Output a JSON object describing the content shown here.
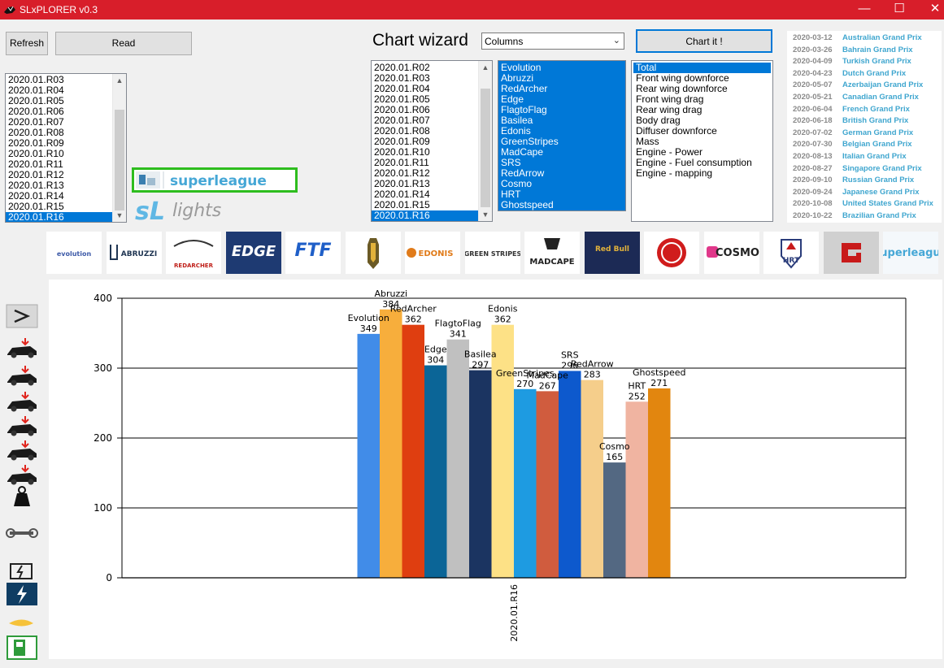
{
  "window": {
    "title": "SLxPLORER v0.3",
    "minimize": "—",
    "maximize": "☐",
    "close": "✕"
  },
  "toolbar": {
    "refresh_label": "Refresh",
    "read_label": "Read"
  },
  "race_list": {
    "items": [
      "2020.01.R03",
      "2020.01.R04",
      "2020.01.R05",
      "2020.01.R06",
      "2020.01.R07",
      "2020.01.R08",
      "2020.01.R09",
      "2020.01.R10",
      "2020.01.R11",
      "2020.01.R12",
      "2020.01.R13",
      "2020.01.R14",
      "2020.01.R15",
      "2020.01.R16"
    ],
    "selected": "2020.01.R16"
  },
  "wizard": {
    "title": "Chart wizard",
    "chart_type_value": "Columns",
    "chart_button_label": "Chart it !",
    "sessions": [
      "2020.01.R02",
      "2020.01.R03",
      "2020.01.R04",
      "2020.01.R05",
      "2020.01.R06",
      "2020.01.R07",
      "2020.01.R08",
      "2020.01.R09",
      "2020.01.R10",
      "2020.01.R11",
      "2020.01.R12",
      "2020.01.R13",
      "2020.01.R14",
      "2020.01.R15",
      "2020.01.R16"
    ],
    "session_selected": "2020.01.R16",
    "teams": [
      "Evolution",
      "Abruzzi",
      "RedArcher",
      "Edge",
      "FlagtoFlag",
      "Basilea",
      "Edonis",
      "GreenStripes",
      "MadCape",
      "SRS",
      "RedArrow",
      "Cosmo",
      "HRT",
      "Ghostspeed"
    ],
    "metrics": [
      "Total",
      "Front wing downforce",
      "Rear wing downforce",
      "Front wing drag",
      "Rear wing drag",
      "Body drag",
      "Diffuser downforce",
      "Mass",
      "Engine - Power",
      "Engine - Fuel consumption",
      "Engine - mapping"
    ],
    "metric_selected": "Total"
  },
  "calendar": [
    {
      "date": "2020-03-12",
      "name": "Australian Grand Prix"
    },
    {
      "date": "2020-03-26",
      "name": "Bahrain Grand Prix"
    },
    {
      "date": "2020-04-09",
      "name": "Turkish Grand Prix"
    },
    {
      "date": "2020-04-23",
      "name": "Dutch Grand Prix"
    },
    {
      "date": "2020-05-07",
      "name": "Azerbaijan Grand Prix"
    },
    {
      "date": "2020-05-21",
      "name": "Canadian Grand Prix"
    },
    {
      "date": "2020-06-04",
      "name": "French Grand Prix"
    },
    {
      "date": "2020-06-18",
      "name": "British Grand Prix"
    },
    {
      "date": "2020-07-02",
      "name": "German Grand Prix"
    },
    {
      "date": "2020-07-30",
      "name": "Belgian Grand Prix"
    },
    {
      "date": "2020-08-13",
      "name": "Italian Grand Prix"
    },
    {
      "date": "2020-08-27",
      "name": "Singapore Grand Prix"
    },
    {
      "date": "2020-09-10",
      "name": "Russian Grand Prix"
    },
    {
      "date": "2020-09-24",
      "name": "Japanese Grand Prix"
    },
    {
      "date": "2020-10-08",
      "name": "United States Grand Prix"
    },
    {
      "date": "2020-10-22",
      "name": "Brazilian Grand Prix"
    }
  ],
  "branding": {
    "superleague": "superleague",
    "sl_lights": "lights",
    "sl_mark": "sL"
  },
  "team_logos": [
    {
      "name": "evolution",
      "text": "evolution"
    },
    {
      "name": "abruzzi",
      "text": "ABRUZZI"
    },
    {
      "name": "redarcher",
      "text": "REDARCHER"
    },
    {
      "name": "edge",
      "text": "EDGE"
    },
    {
      "name": "ftf",
      "text": "FTF"
    },
    {
      "name": "basilea",
      "text": ""
    },
    {
      "name": "edonis",
      "text": "EDONIS"
    },
    {
      "name": "greenstripes",
      "text": "GREEN STRIPES"
    },
    {
      "name": "madcape",
      "text": "MADCAPE"
    },
    {
      "name": "redbull",
      "text": "Red Bull"
    },
    {
      "name": "redarrow",
      "text": ""
    },
    {
      "name": "cosmo",
      "text": "COSMO"
    },
    {
      "name": "hrt",
      "text": "HRT"
    },
    {
      "name": "ghostspeed",
      "text": ""
    },
    {
      "name": "superleague",
      "text": "superleague"
    }
  ],
  "sidebar_icons": [
    "sum-icon",
    "front-wing-downforce-icon",
    "rear-wing-downforce-icon",
    "front-wing-drag-icon",
    "rear-wing-drag-icon",
    "body-drag-icon",
    "diffuser-downforce-icon",
    "mass-icon",
    "wrench-icon",
    "engine-power-icon",
    "engine-lightning-icon",
    "fuel-flame-icon",
    "fuel-pump-icon"
  ],
  "colors": {
    "titlebar": "#d81e2a",
    "selection": "#0078d7",
    "banner_border": "#2ebd1e",
    "race_name": "#3fa6cf"
  },
  "chart_data": {
    "type": "bar",
    "categories": [
      "2020.01.R16"
    ],
    "series": [
      {
        "name": "Evolution",
        "value": 349,
        "color": "#418ce8"
      },
      {
        "name": "Abruzzi",
        "value": 384,
        "color": "#f7ae3c"
      },
      {
        "name": "RedArcher",
        "value": 362,
        "color": "#df3e10"
      },
      {
        "name": "Edge",
        "value": 304,
        "color": "#0b6597"
      },
      {
        "name": "FlagtoFlag",
        "value": 341,
        "color": "#c0c0c0"
      },
      {
        "name": "Basilea",
        "value": 297,
        "color": "#1b3461"
      },
      {
        "name": "Edonis",
        "value": 362,
        "color": "#fde186"
      },
      {
        "name": "GreenStripes",
        "value": 270,
        "color": "#1e9be1"
      },
      {
        "name": "MadCape",
        "value": 267,
        "color": "#d05c3e"
      },
      {
        "name": "SRS",
        "value": 296,
        "color": "#0d59cd"
      },
      {
        "name": "RedArrow",
        "value": 283,
        "color": "#f5ce8b"
      },
      {
        "name": "Cosmo",
        "value": 165,
        "color": "#536882"
      },
      {
        "name": "HRT",
        "value": 252,
        "color": "#f0b4a1"
      },
      {
        "name": "Ghostspeed",
        "value": 271,
        "color": "#e2860f"
      }
    ],
    "ylim": [
      0,
      400
    ],
    "yticks": [
      0,
      100,
      200,
      300,
      400
    ],
    "grid": true,
    "legend": "none"
  }
}
